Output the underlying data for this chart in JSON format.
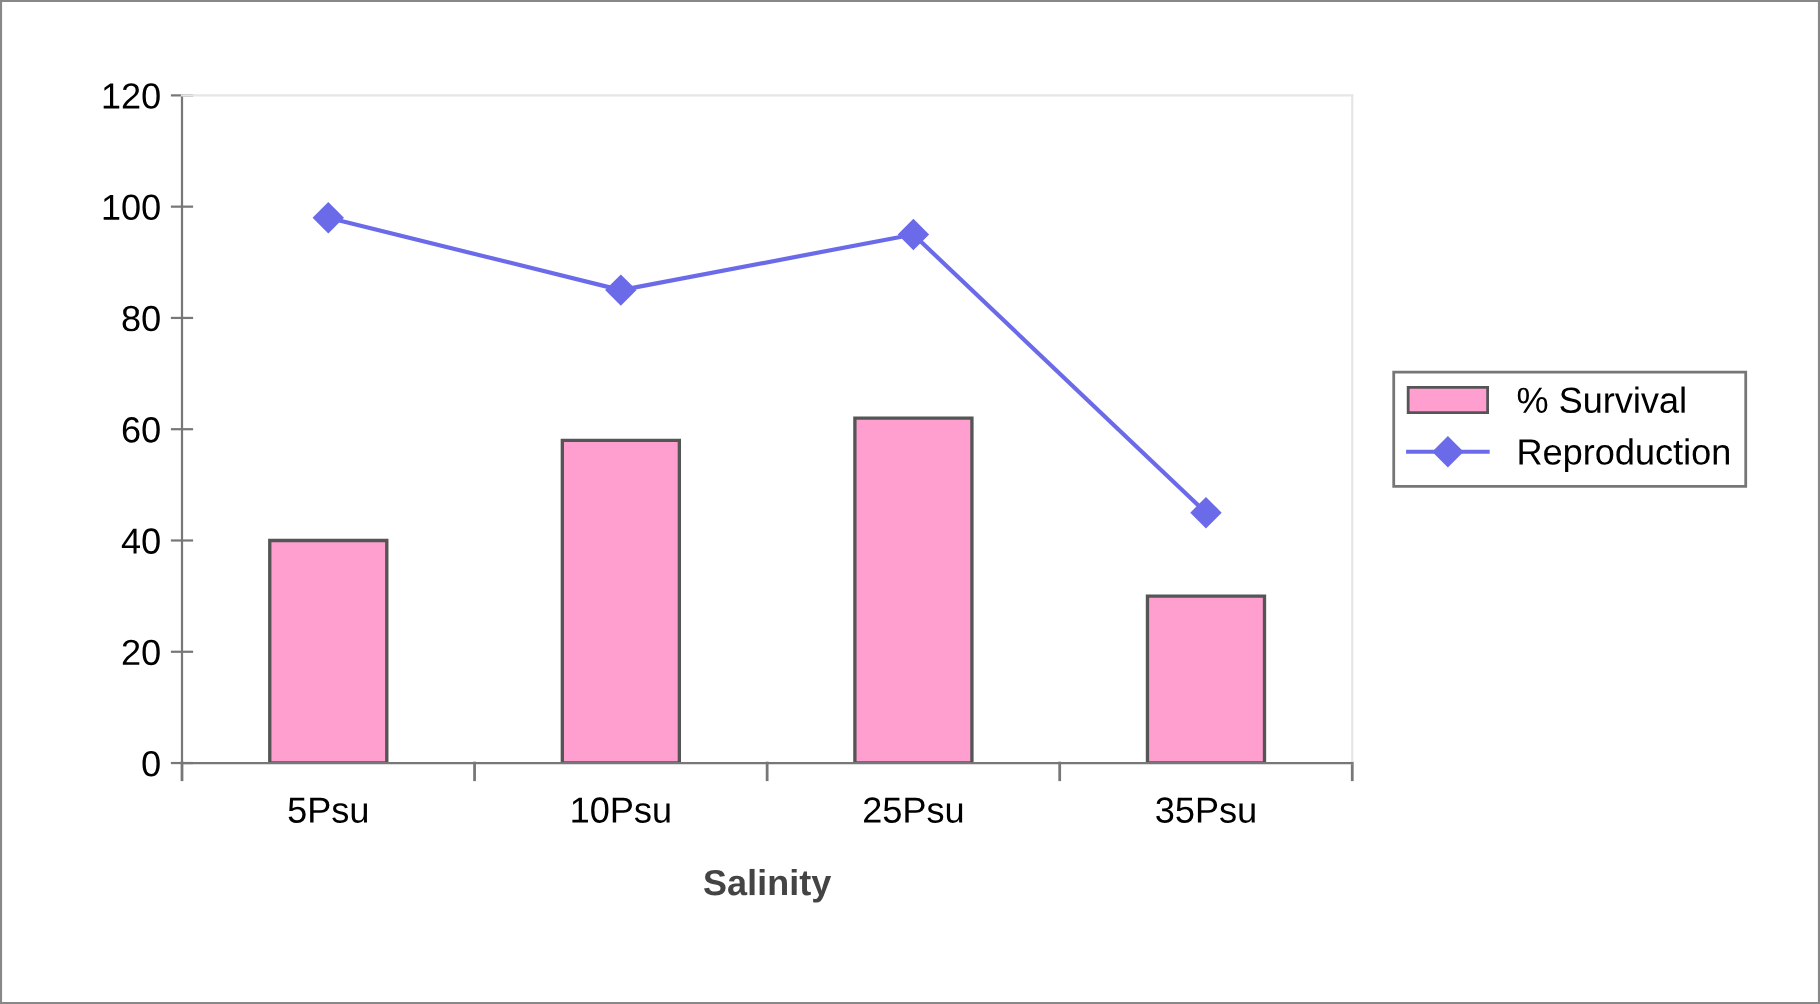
{
  "chart_data": {
    "type": "bar",
    "xlabel": "Salinity",
    "categories": [
      "5Psu",
      "10Psu",
      "25Psu",
      "35Psu"
    ],
    "series": [
      {
        "name": "% Survival",
        "color": "#ff9fd0",
        "values": [
          40,
          58,
          62,
          30
        ]
      },
      {
        "name": "Reproduction",
        "type": "line",
        "color": "#6b6bea",
        "marker": "diamond",
        "values": [
          98,
          85,
          95,
          45
        ]
      }
    ],
    "ylim": [
      0,
      120
    ],
    "yticks": [
      0,
      20,
      40,
      60,
      80,
      100,
      120
    ],
    "grid": false,
    "legend": "right"
  }
}
